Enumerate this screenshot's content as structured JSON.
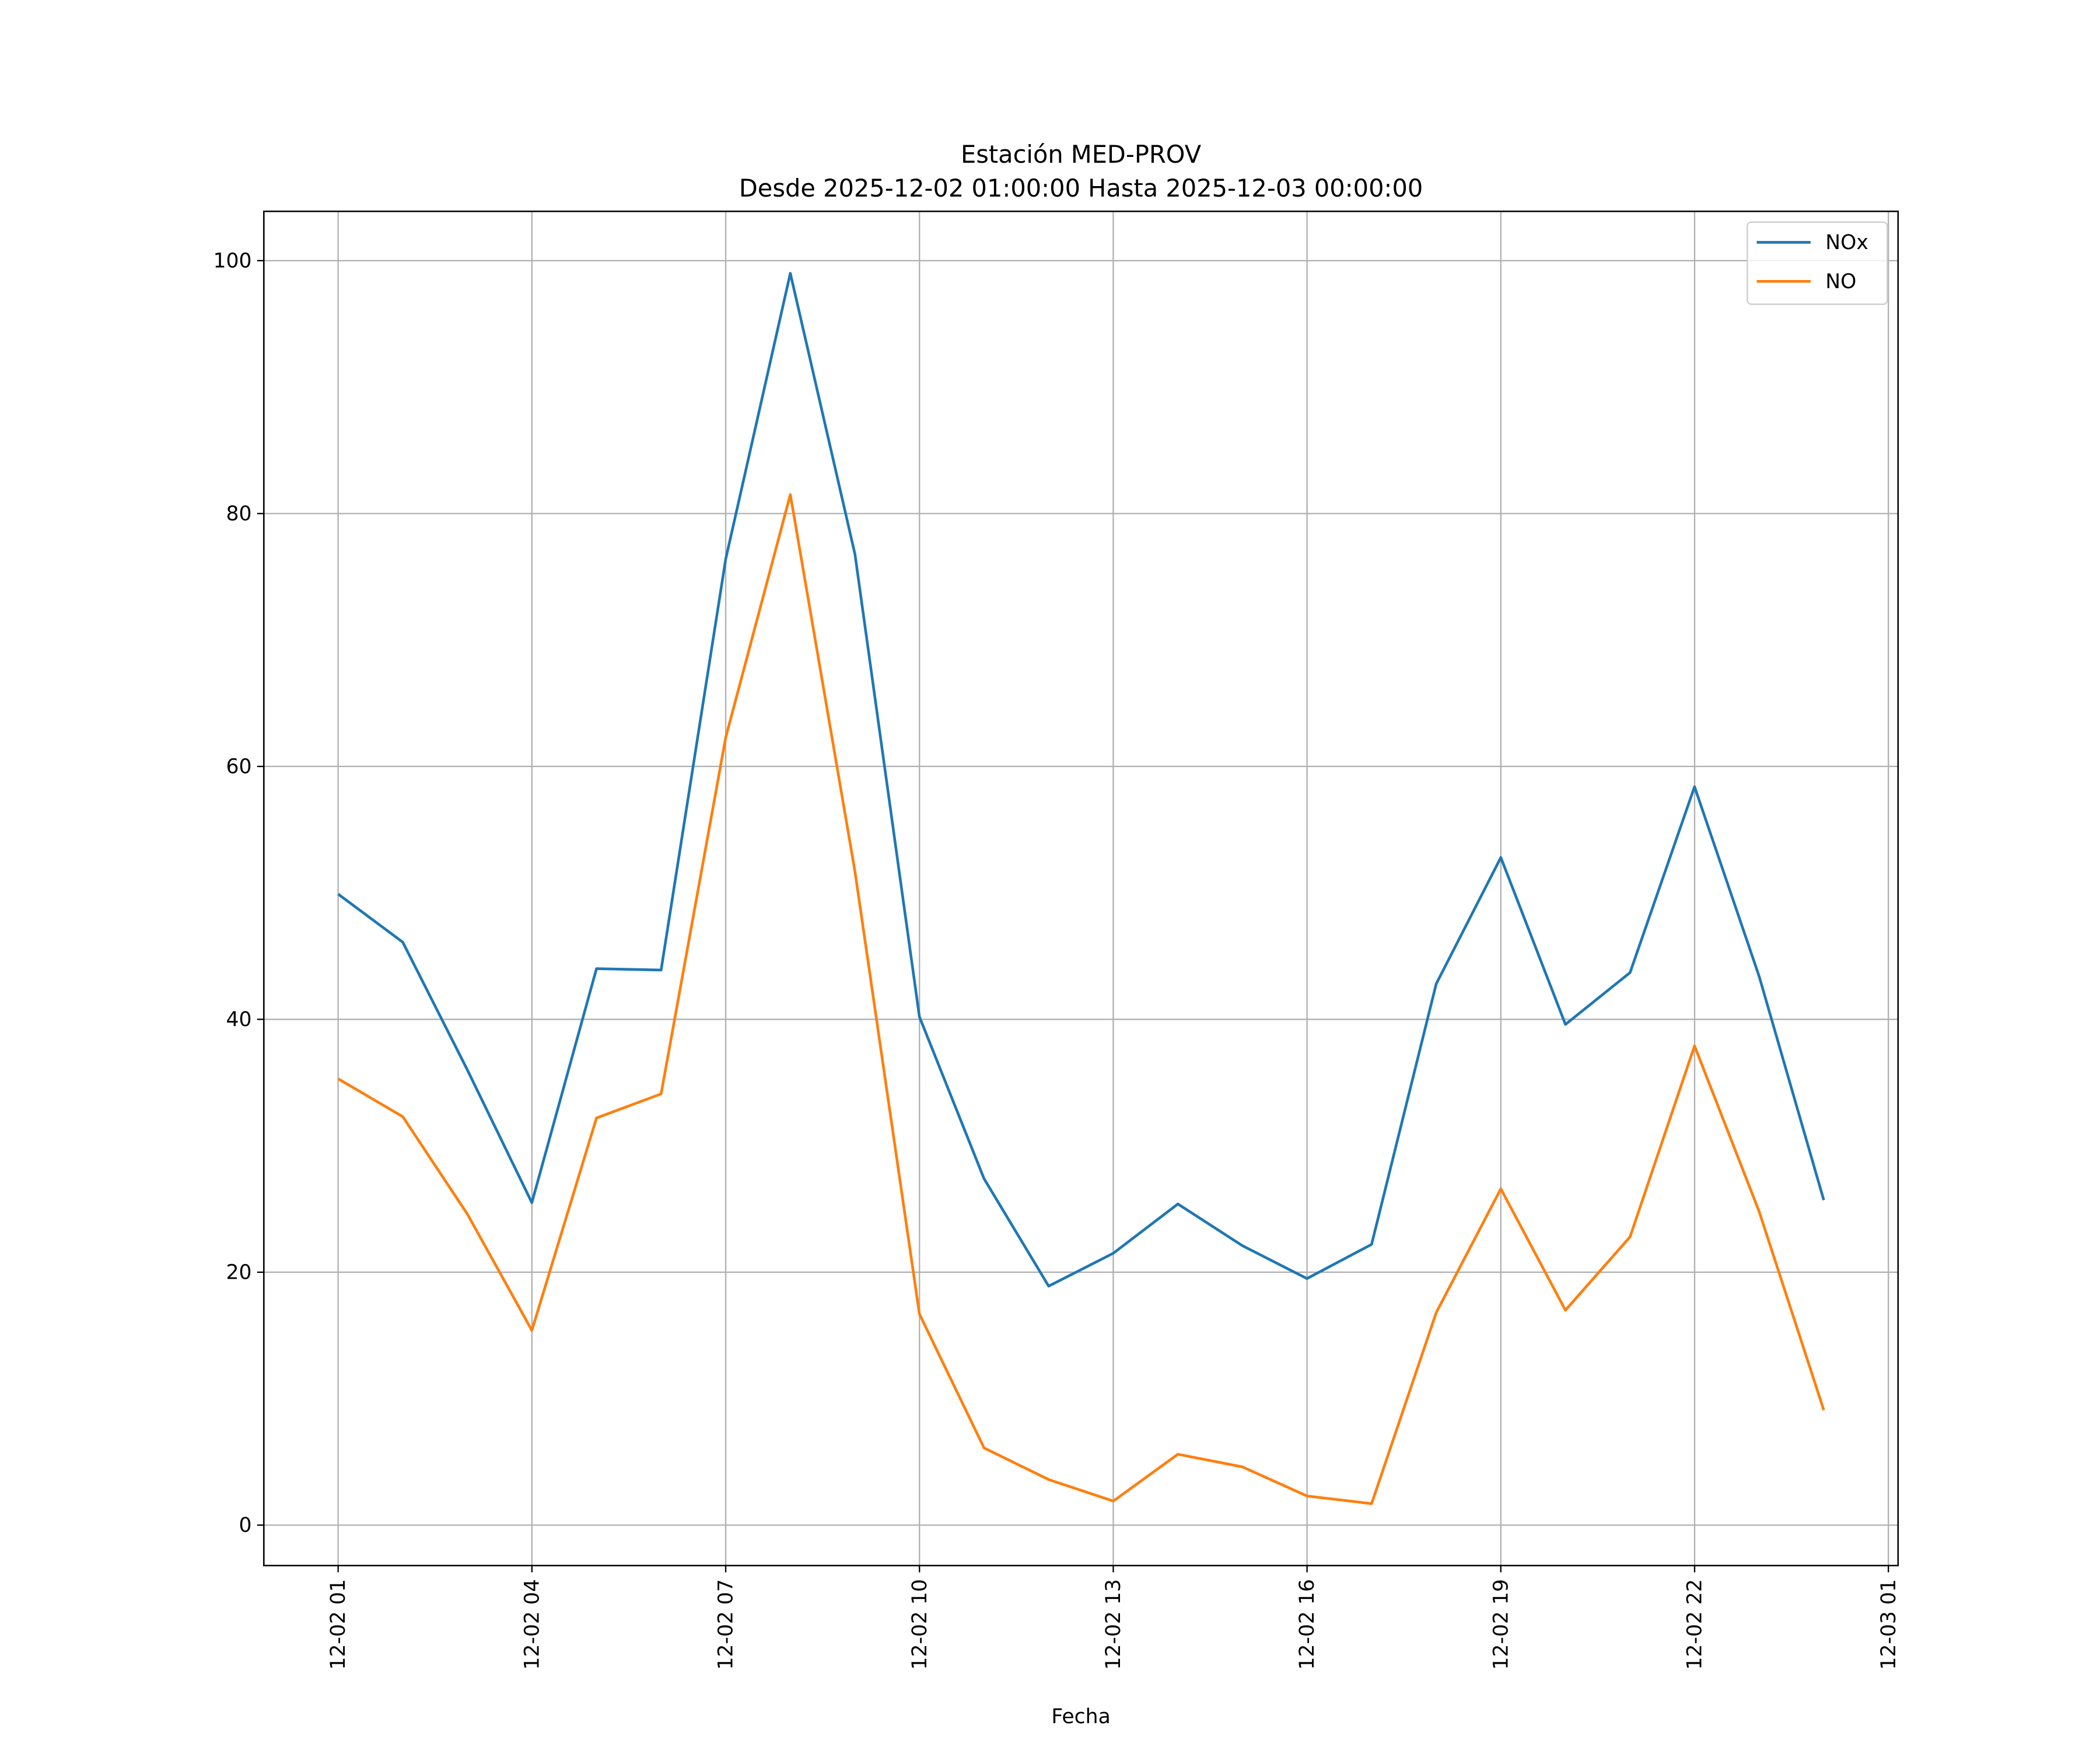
{
  "chart_data": {
    "type": "line",
    "title": "Estación MED-PROV",
    "subtitle": "Desde 2025-12-02 01:00:00 Hasta 2025-12-03 00:00:00",
    "xlabel": "Fecha",
    "ylabel": "",
    "x": [
      "12-02 01",
      "12-02 02",
      "12-02 03",
      "12-02 04",
      "12-02 05",
      "12-02 06",
      "12-02 07",
      "12-02 08",
      "12-02 09",
      "12-02 10",
      "12-02 11",
      "12-02 12",
      "12-02 13",
      "12-02 14",
      "12-02 15",
      "12-02 16",
      "12-02 17",
      "12-02 18",
      "12-02 19",
      "12-02 20",
      "12-02 21",
      "12-02 22",
      "12-02 23",
      "12-03 00"
    ],
    "x_hours": [
      1,
      2,
      3,
      4,
      5,
      6,
      7,
      8,
      9,
      10,
      11,
      12,
      13,
      14,
      15,
      16,
      17,
      18,
      19,
      20,
      21,
      22,
      23,
      24
    ],
    "series": [
      {
        "name": "NOx",
        "color": "#1f77b4",
        "values": [
          49.9,
          46.1,
          36.0,
          25.5,
          44.0,
          43.9,
          76.4,
          99.0,
          76.8,
          40.2,
          27.4,
          18.9,
          21.5,
          25.4,
          22.1,
          19.5,
          22.2,
          42.8,
          52.8,
          39.6,
          43.7,
          58.4,
          43.4,
          25.7
        ]
      },
      {
        "name": "NO",
        "color": "#ff7f0e",
        "values": [
          35.3,
          32.3,
          24.6,
          15.4,
          32.2,
          34.1,
          62.3,
          81.5,
          51.7,
          16.7,
          6.1,
          3.6,
          1.9,
          5.6,
          4.6,
          2.3,
          1.7,
          16.8,
          26.6,
          17.0,
          22.8,
          37.9,
          24.8,
          9.1
        ]
      }
    ],
    "xticks": [
      {
        "hour": 1,
        "label": "12-02 01"
      },
      {
        "hour": 4,
        "label": "12-02 04"
      },
      {
        "hour": 7,
        "label": "12-02 07"
      },
      {
        "hour": 10,
        "label": "12-02 10"
      },
      {
        "hour": 13,
        "label": "12-02 13"
      },
      {
        "hour": 16,
        "label": "12-02 16"
      },
      {
        "hour": 19,
        "label": "12-02 19"
      },
      {
        "hour": 22,
        "label": "12-02 22"
      },
      {
        "hour": 25,
        "label": "12-03 01"
      }
    ],
    "yticks": [
      0,
      20,
      40,
      60,
      80,
      100
    ],
    "xlim": [
      -0.15,
      25.15
    ],
    "ylim": [
      -3.2,
      103.9
    ],
    "grid": true,
    "legend": "top-right"
  }
}
